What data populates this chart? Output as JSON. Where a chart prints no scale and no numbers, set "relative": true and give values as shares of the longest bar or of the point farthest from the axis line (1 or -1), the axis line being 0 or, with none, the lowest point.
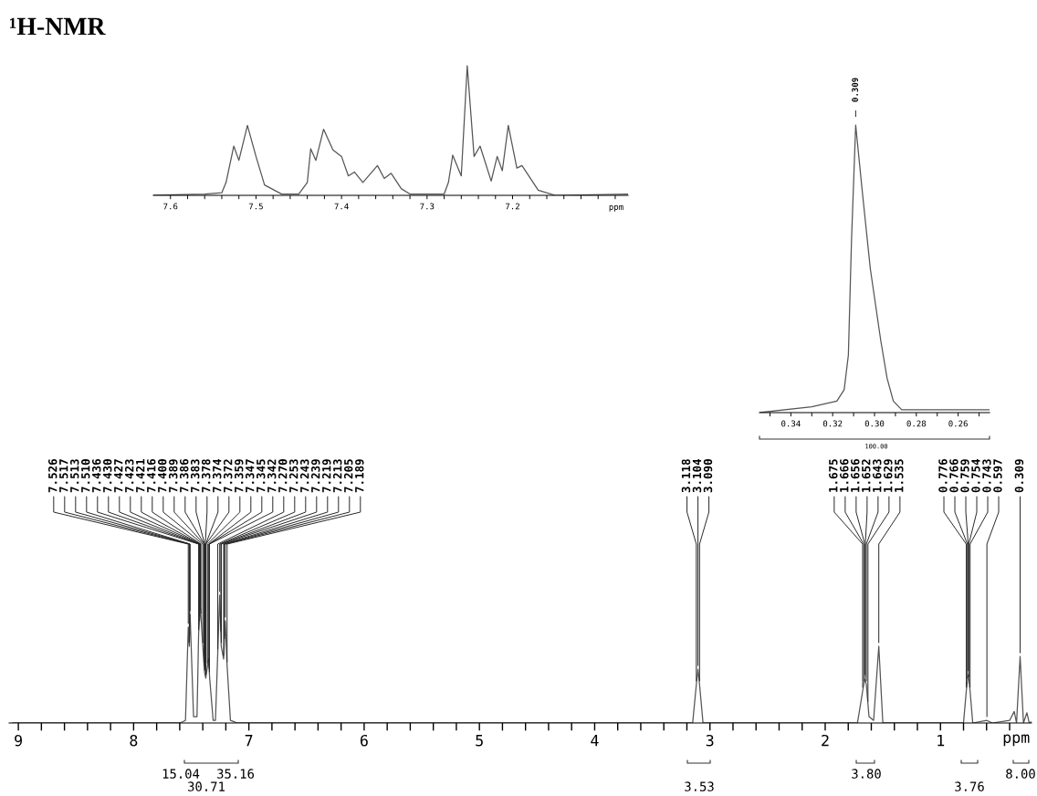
{
  "chart_data": [
    {
      "type": "line",
      "relative": true,
      "xlabel": "ppm",
      "xlim": [
        9.08,
        0.21
      ],
      "xticks": [
        {
          "value": 9.0,
          "label": "9"
        },
        {
          "value": 8.8,
          "label": null
        },
        {
          "value": 8.6,
          "label": null
        },
        {
          "value": 8.4,
          "label": null
        },
        {
          "value": 8.2,
          "label": null
        },
        {
          "value": 8.0,
          "label": "8"
        },
        {
          "value": 7.8,
          "label": null
        },
        {
          "value": 7.6,
          "label": null
        },
        {
          "value": 7.4,
          "label": null
        },
        {
          "value": 7.2,
          "label": null
        },
        {
          "value": 7.0,
          "label": "7"
        },
        {
          "value": 6.8,
          "label": null
        },
        {
          "value": 6.6,
          "label": null
        },
        {
          "value": 6.4,
          "label": null
        },
        {
          "value": 6.2,
          "label": null
        },
        {
          "value": 6.0,
          "label": "6"
        },
        {
          "value": 5.8,
          "label": null
        },
        {
          "value": 5.6,
          "label": null
        },
        {
          "value": 5.4,
          "label": null
        },
        {
          "value": 5.2,
          "label": null
        },
        {
          "value": 5.0,
          "label": "5"
        },
        {
          "value": 4.8,
          "label": null
        },
        {
          "value": 4.6,
          "label": null
        },
        {
          "value": 4.4,
          "label": null
        },
        {
          "value": 4.2,
          "label": null
        },
        {
          "value": 4.0,
          "label": "4"
        },
        {
          "value": 3.8,
          "label": null
        },
        {
          "value": 3.6,
          "label": null
        },
        {
          "value": 3.4,
          "label": null
        },
        {
          "value": 3.2,
          "label": null
        },
        {
          "value": 3.0,
          "label": "3"
        },
        {
          "value": 2.8,
          "label": null
        },
        {
          "value": 2.6,
          "label": null
        },
        {
          "value": 2.4,
          "label": null
        },
        {
          "value": 2.2,
          "label": null
        },
        {
          "value": 2.0,
          "label": "2"
        },
        {
          "value": 1.8,
          "label": null
        },
        {
          "value": 1.6,
          "label": null
        },
        {
          "value": 1.4,
          "label": null
        },
        {
          "value": 1.2,
          "label": null
        },
        {
          "value": 1.0,
          "label": "1"
        },
        {
          "value": 0.8,
          "label": null
        },
        {
          "value": 0.6,
          "label": null
        },
        {
          "value": 0.4,
          "label": null
        }
      ],
      "series": [
        {
          "color": "#555555",
          "x": [
            9.05,
            7.6,
            7.55,
            7.526,
            7.517,
            7.51,
            7.48,
            7.45,
            7.436,
            7.42,
            7.4,
            7.385,
            7.374,
            7.35,
            7.34,
            7.31,
            7.29,
            7.27,
            7.253,
            7.24,
            7.219,
            7.205,
            7.189,
            7.16,
            7.1,
            3.15,
            3.118,
            3.104,
            3.09,
            3.06,
            1.72,
            1.675,
            1.656,
            1.643,
            1.62,
            1.58,
            1.535,
            1.5,
            0.8,
            0.776,
            0.759,
            0.743,
            0.72,
            0.597,
            0.55,
            0.4,
            0.36,
            0.34,
            0.309,
            0.28,
            0.25,
            0.23,
            0.21
          ],
          "values": [
            0,
            0,
            0.02,
            0.75,
            0.6,
            0.85,
            0.05,
            0.05,
            0.7,
            0.9,
            0.6,
            0.4,
            0.35,
            0.5,
            0.35,
            0.02,
            0.02,
            0.55,
            1.0,
            0.6,
            0.5,
            0.8,
            0.45,
            0.02,
            0,
            0,
            0.3,
            0.42,
            0.3,
            0,
            0,
            0.25,
            0.35,
            0.3,
            0.05,
            0.02,
            0.6,
            0,
            0,
            0.25,
            0.38,
            0.25,
            0,
            0.02,
            0,
            0.02,
            0.09,
            0,
            0.52,
            0,
            0.08,
            0,
            0.01
          ]
        }
      ],
      "annotations": [
        {
          "text": "7.526",
          "x": 7.526,
          "y": 0.75
        },
        {
          "text": "7.517",
          "x": 7.517,
          "y": 0.6
        },
        {
          "text": "7.513",
          "x": 7.513,
          "y": 0.72
        },
        {
          "text": "7.510",
          "x": 7.51,
          "y": 0.85
        },
        {
          "text": "7.436",
          "x": 7.436,
          "y": 0.7
        },
        {
          "text": "7.430",
          "x": 7.43,
          "y": 0.77
        },
        {
          "text": "7.427",
          "x": 7.427,
          "y": 0.81
        },
        {
          "text": "7.423",
          "x": 7.423,
          "y": 0.86
        },
        {
          "text": "7.421",
          "x": 7.421,
          "y": 0.88
        },
        {
          "text": "7.416",
          "x": 7.416,
          "y": 0.83
        },
        {
          "text": "7.400",
          "x": 7.4,
          "y": 0.6
        },
        {
          "text": "7.389",
          "x": 7.389,
          "y": 0.45
        },
        {
          "text": "7.386",
          "x": 7.386,
          "y": 0.42
        },
        {
          "text": "7.383",
          "x": 7.383,
          "y": 0.39
        },
        {
          "text": "7.378",
          "x": 7.378,
          "y": 0.38
        },
        {
          "text": "7.374",
          "x": 7.374,
          "y": 0.35
        },
        {
          "text": "7.372",
          "x": 7.372,
          "y": 0.36
        },
        {
          "text": "7.359",
          "x": 7.359,
          "y": 0.44
        },
        {
          "text": "7.347",
          "x": 7.347,
          "y": 0.45
        },
        {
          "text": "7.345",
          "x": 7.345,
          "y": 0.4
        },
        {
          "text": "7.342",
          "x": 7.342,
          "y": 0.37
        },
        {
          "text": "7.270",
          "x": 7.27,
          "y": 0.55
        },
        {
          "text": "7.253",
          "x": 7.253,
          "y": 1.0
        },
        {
          "text": "7.243",
          "x": 7.243,
          "y": 0.69
        },
        {
          "text": "7.239",
          "x": 7.239,
          "y": 0.6
        },
        {
          "text": "7.219",
          "x": 7.219,
          "y": 0.5
        },
        {
          "text": "7.213",
          "x": 7.213,
          "y": 0.63
        },
        {
          "text": "7.205",
          "x": 7.205,
          "y": 0.8
        },
        {
          "text": "7.189",
          "x": 7.189,
          "y": 0.45
        },
        {
          "text": "3.118",
          "x": 3.118,
          "y": 0.3
        },
        {
          "text": "3.104",
          "x": 3.104,
          "y": 0.42
        },
        {
          "text": "3.090",
          "x": 3.09,
          "y": 0.3
        },
        {
          "text": "1.675",
          "x": 1.675,
          "y": 0.25
        },
        {
          "text": "1.666",
          "x": 1.666,
          "y": 0.3
        },
        {
          "text": "1.656",
          "x": 1.656,
          "y": 0.35
        },
        {
          "text": "1.652",
          "x": 1.652,
          "y": 0.33
        },
        {
          "text": "1.643",
          "x": 1.643,
          "y": 0.3
        },
        {
          "text": "1.629",
          "x": 1.629,
          "y": 0.14
        },
        {
          "text": "1.535",
          "x": 1.535,
          "y": 0.6
        },
        {
          "text": "0.776",
          "x": 0.776,
          "y": 0.25
        },
        {
          "text": "0.766",
          "x": 0.766,
          "y": 0.32
        },
        {
          "text": "0.759",
          "x": 0.759,
          "y": 0.38
        },
        {
          "text": "0.754",
          "x": 0.754,
          "y": 0.33
        },
        {
          "text": "0.743",
          "x": 0.743,
          "y": 0.25
        },
        {
          "text": "0.597",
          "x": 0.597,
          "y": 0.02
        },
        {
          "text": "0.309",
          "x": 0.309,
          "y": 0.52
        },
        "15.04",
        "30.71",
        "35.16",
        "3.53",
        "3.80",
        "3.76",
        "8.00"
      ]
    },
    {
      "type": "line",
      "title": "¹H-NMR",
      "relative": true,
      "xlabel": "ppm",
      "xlim": [
        7.62,
        7.065
      ],
      "xticks": [
        {
          "value": 7.6,
          "label": "7.6"
        },
        {
          "value": 7.58,
          "label": null
        },
        {
          "value": 7.56,
          "label": null
        },
        {
          "value": 7.54,
          "label": null
        },
        {
          "value": 7.52,
          "label": null
        },
        {
          "value": 7.5,
          "label": "7.5"
        },
        {
          "value": 7.48,
          "label": null
        },
        {
          "value": 7.46,
          "label": null
        },
        {
          "value": 7.44,
          "label": null
        },
        {
          "value": 7.42,
          "label": null
        },
        {
          "value": 7.4,
          "label": "7.4"
        },
        {
          "value": 7.38,
          "label": null
        },
        {
          "value": 7.36,
          "label": null
        },
        {
          "value": 7.34,
          "label": null
        },
        {
          "value": 7.32,
          "label": null
        },
        {
          "value": 7.3,
          "label": "7.3"
        },
        {
          "value": 7.28,
          "label": null
        },
        {
          "value": 7.26,
          "label": null
        },
        {
          "value": 7.24,
          "label": null
        },
        {
          "value": 7.22,
          "label": null
        },
        {
          "value": 7.2,
          "label": "7.2"
        },
        {
          "value": 7.18,
          "label": null
        },
        {
          "value": 7.16,
          "label": null
        },
        {
          "value": 7.14,
          "label": null
        },
        {
          "value": 7.12,
          "label": null
        },
        {
          "value": 7.1,
          "label": null
        },
        {
          "value": 7.08,
          "label": null
        }
      ],
      "series": [
        {
          "color": "#555555",
          "x": [
            7.62,
            7.56,
            7.54,
            7.535,
            7.526,
            7.52,
            7.51,
            7.5,
            7.49,
            7.47,
            7.45,
            7.44,
            7.436,
            7.43,
            7.421,
            7.41,
            7.4,
            7.392,
            7.385,
            7.375,
            7.358,
            7.35,
            7.342,
            7.33,
            7.32,
            7.28,
            7.275,
            7.27,
            7.26,
            7.253,
            7.245,
            7.238,
            7.225,
            7.218,
            7.212,
            7.205,
            7.195,
            7.189,
            7.17,
            7.15,
            7.065
          ],
          "values": [
            0,
            0.01,
            0.02,
            0.1,
            0.38,
            0.27,
            0.54,
            0.3,
            0.08,
            0.01,
            0.01,
            0.1,
            0.36,
            0.27,
            0.51,
            0.35,
            0.3,
            0.15,
            0.18,
            0.1,
            0.23,
            0.13,
            0.17,
            0.05,
            0.01,
            0.01,
            0.1,
            0.31,
            0.15,
            1.0,
            0.3,
            0.38,
            0.11,
            0.3,
            0.19,
            0.54,
            0.21,
            0.23,
            0.04,
            0,
            0.01
          ]
        }
      ]
    },
    {
      "type": "line",
      "relative": true,
      "xlim": [
        0.355,
        0.245
      ],
      "xticks": [
        {
          "value": 0.35,
          "label": null
        },
        {
          "value": 0.34,
          "label": "0.34"
        },
        {
          "value": 0.33,
          "label": null
        },
        {
          "value": 0.32,
          "label": "0.32"
        },
        {
          "value": 0.31,
          "label": null
        },
        {
          "value": 0.3,
          "label": "0.30"
        },
        {
          "value": 0.29,
          "label": null
        },
        {
          "value": 0.28,
          "label": "0.28"
        },
        {
          "value": 0.27,
          "label": null
        },
        {
          "value": 0.26,
          "label": "0.26"
        },
        {
          "value": 0.25,
          "label": null
        }
      ],
      "series": [
        {
          "color": "#555555",
          "x": [
            0.355,
            0.33,
            0.318,
            0.3145,
            0.3125,
            0.311,
            0.309,
            0.306,
            0.302,
            0.297,
            0.294,
            0.291,
            0.287,
            0.27,
            0.245
          ],
          "values": [
            0,
            0.02,
            0.04,
            0.08,
            0.2,
            0.6,
            1.0,
            0.78,
            0.5,
            0.25,
            0.12,
            0.04,
            0.01,
            0.01,
            0.01
          ]
        }
      ],
      "annotations": [
        {
          "text": "0.309",
          "x": 0.309,
          "y": 1.0
        },
        "100.00"
      ]
    }
  ]
}
